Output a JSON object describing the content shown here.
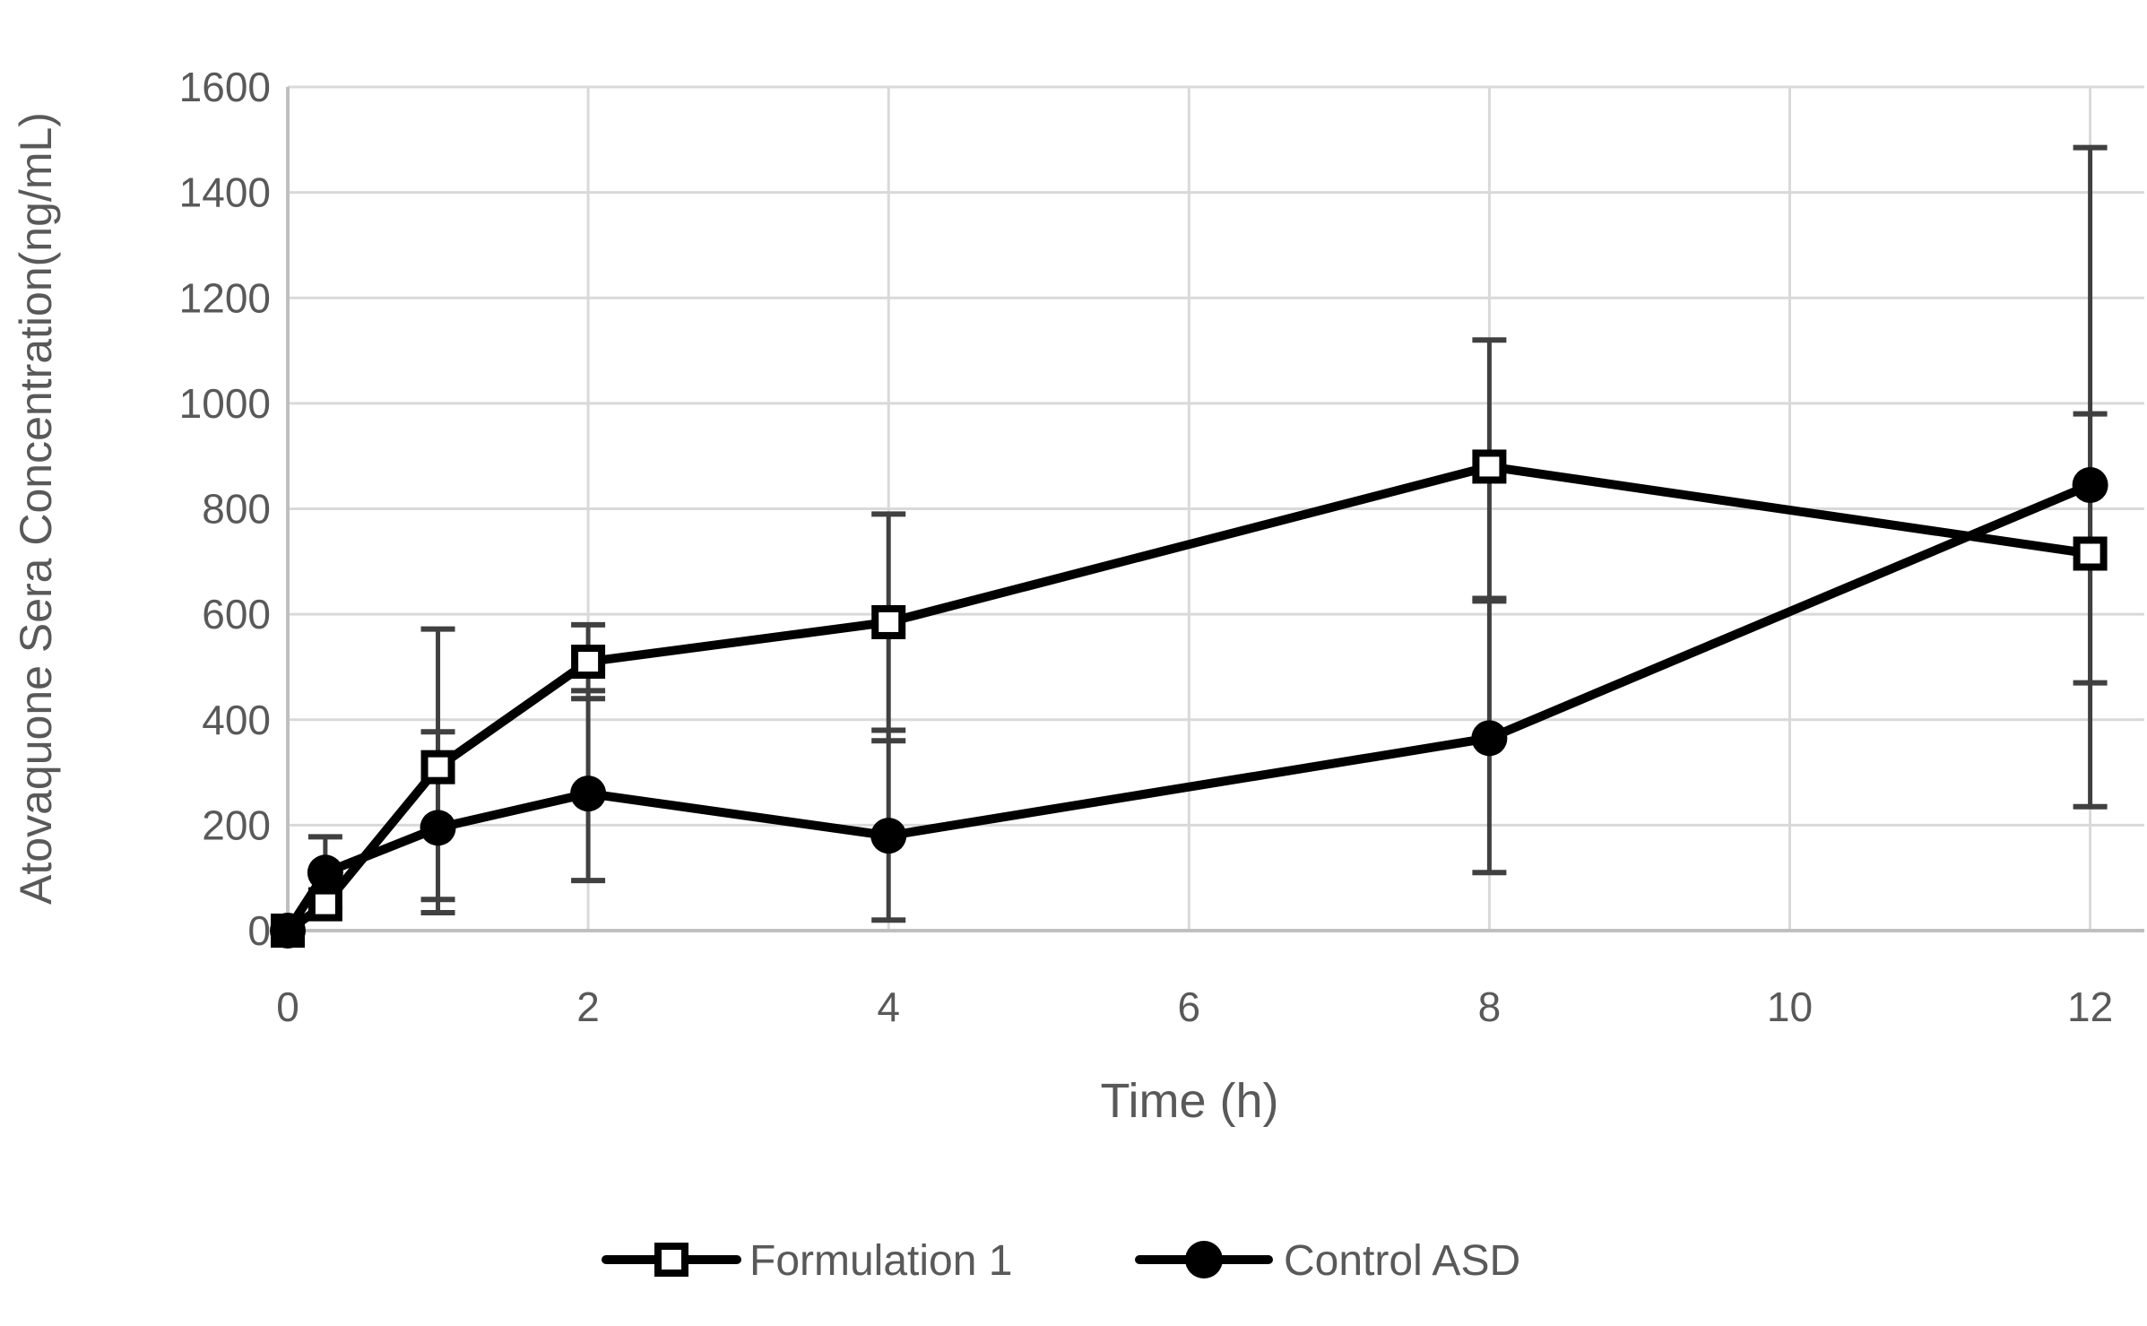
{
  "chart_data": {
    "type": "line",
    "title": "",
    "xlabel": "Time (h)",
    "ylabel": "Atovaquone Sera Concentration(ng/mL)",
    "x_ticks": [
      0,
      2,
      4,
      6,
      8,
      10,
      12
    ],
    "y_ticks": [
      0,
      200,
      400,
      600,
      800,
      1000,
      1200,
      1400,
      1600
    ],
    "xlim": [
      0,
      12.36
    ],
    "ylim": [
      0,
      1600
    ],
    "grid": true,
    "legend_position": "bottom-center",
    "colors": {
      "series": "#000000",
      "error_bar": "#404040",
      "gridline": "#d9d9d9",
      "axis_line": "#bfbfbf",
      "text": "#595959"
    },
    "series": [
      {
        "name": "Formulation 1",
        "marker": "open-square",
        "x": [
          0,
          0.25,
          1,
          2,
          4,
          8,
          12
        ],
        "y": [
          0,
          50,
          310,
          510,
          585,
          880,
          715
        ],
        "err_up": [
          0,
          0,
          262,
          70,
          205,
          240,
          265
        ],
        "err_down": [
          0,
          0,
          276,
          70,
          225,
          250,
          245
        ]
      },
      {
        "name": "Control ASD",
        "marker": "filled-circle",
        "x": [
          0,
          0.25,
          1,
          2,
          4,
          8,
          12
        ],
        "y": [
          0,
          110,
          195,
          260,
          180,
          365,
          845
        ],
        "err_up": [
          0,
          68,
          182,
          195,
          200,
          260,
          640
        ],
        "err_down": [
          0,
          68,
          136,
          165,
          160,
          255,
          610
        ]
      }
    ]
  }
}
